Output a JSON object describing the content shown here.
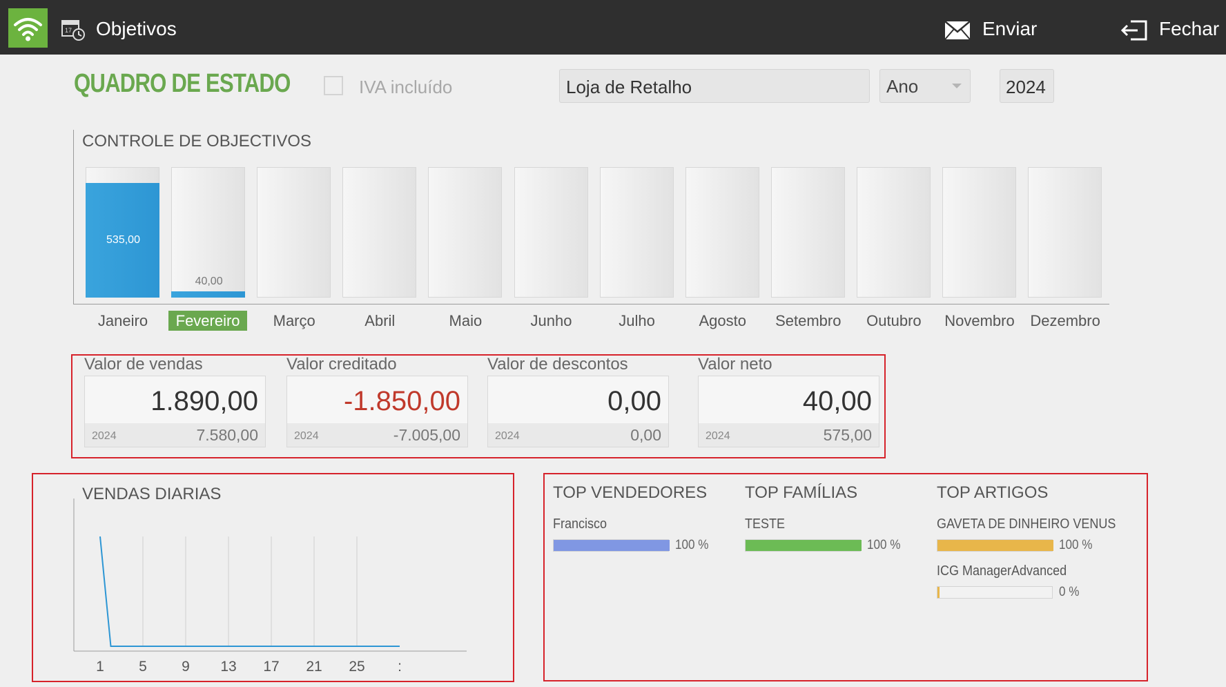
{
  "topbar": {
    "title": "Objetivos",
    "send_label": "Enviar",
    "close_label": "Fechar",
    "icons": [
      "wifi-icon",
      "calendar-icon",
      "envelope-icon",
      "exit-icon"
    ]
  },
  "header": {
    "page_title": "QUADRO DE ESTADO",
    "iva_label": "IVA incluído",
    "iva_checked": false,
    "store": "Loja de Retalho",
    "period": "Ano",
    "year": "2024"
  },
  "objectives": {
    "title": "CONTROLE DE OBJECTIVOS",
    "selected_month": "Fevereiro",
    "months": [
      {
        "name": "Janeiro",
        "value_label": "535,00",
        "fill": 0.88
      },
      {
        "name": "Fevereiro",
        "value_label": "40,00",
        "fill": 0.05
      },
      {
        "name": "Março",
        "value_label": "",
        "fill": 0
      },
      {
        "name": "Abril",
        "value_label": "",
        "fill": 0
      },
      {
        "name": "Maio",
        "value_label": "",
        "fill": 0
      },
      {
        "name": "Junho",
        "value_label": "",
        "fill": 0
      },
      {
        "name": "Julho",
        "value_label": "",
        "fill": 0
      },
      {
        "name": "Agosto",
        "value_label": "",
        "fill": 0
      },
      {
        "name": "Setembro",
        "value_label": "",
        "fill": 0
      },
      {
        "name": "Outubro",
        "value_label": "",
        "fill": 0
      },
      {
        "name": "Novembro",
        "value_label": "",
        "fill": 0
      },
      {
        "name": "Dezembro",
        "value_label": "",
        "fill": 0
      }
    ]
  },
  "kpis": [
    {
      "label": "Valor de vendas",
      "value": "1.890,00",
      "year": "2024",
      "prev": "7.580,00",
      "negative": false
    },
    {
      "label": "Valor creditado",
      "value": "-1.850,00",
      "year": "2024",
      "prev": "-7.005,00",
      "negative": true
    },
    {
      "label": "Valor de descontos",
      "value": "0,00",
      "year": "2024",
      "prev": "0,00",
      "negative": false
    },
    {
      "label": "Valor neto",
      "value": "40,00",
      "year": "2024",
      "prev": "575,00",
      "negative": false
    }
  ],
  "daily": {
    "title": "VENDAS DIARIAS",
    "x_ticks": [
      "1",
      "5",
      "9",
      "13",
      "17",
      "21",
      "25",
      ":"
    ]
  },
  "chart_data": {
    "type": "line",
    "title": "VENDAS DIARIAS",
    "x": [
      1,
      2,
      3,
      4,
      5,
      6,
      7,
      8,
      9,
      10,
      11,
      12,
      13,
      14,
      15,
      16,
      17,
      18,
      19,
      20,
      21,
      22,
      23,
      24,
      25,
      26,
      27,
      28,
      29
    ],
    "values": [
      1,
      0,
      0,
      0,
      0,
      0,
      0,
      0,
      0,
      0,
      0,
      0,
      0,
      0,
      0,
      0,
      0,
      0,
      0,
      0,
      0,
      0,
      0,
      0,
      0,
      0,
      0,
      0,
      0
    ],
    "color": "#2d96d4",
    "grid": true
  },
  "tops": {
    "vendedores": {
      "title": "TOP VENDEDORES",
      "items": [
        {
          "name": "Francisco",
          "pct_label": "100 %",
          "pct": 1.0,
          "color": "#8097e3"
        }
      ]
    },
    "familias": {
      "title": "TOP FAMÍLIAS",
      "items": [
        {
          "name": "TESTE",
          "pct_label": "100 %",
          "pct": 1.0,
          "color": "#6cbb55"
        }
      ]
    },
    "artigos": {
      "title": "TOP ARTIGOS",
      "items": [
        {
          "name": "GAVETA DE DINHEIRO VENUS",
          "pct_label": "100 %",
          "pct": 1.0,
          "color": "#e8b64a"
        },
        {
          "name": "ICG ManagerAdvanced",
          "pct_label": "0 %",
          "pct": 0.0,
          "color": "#e8b64a"
        }
      ]
    }
  },
  "colors": {
    "accent": "#6aa84f",
    "bar_blue": "#2d96d4",
    "negative": "#c0392b",
    "highlight_box": "#d6222a"
  }
}
